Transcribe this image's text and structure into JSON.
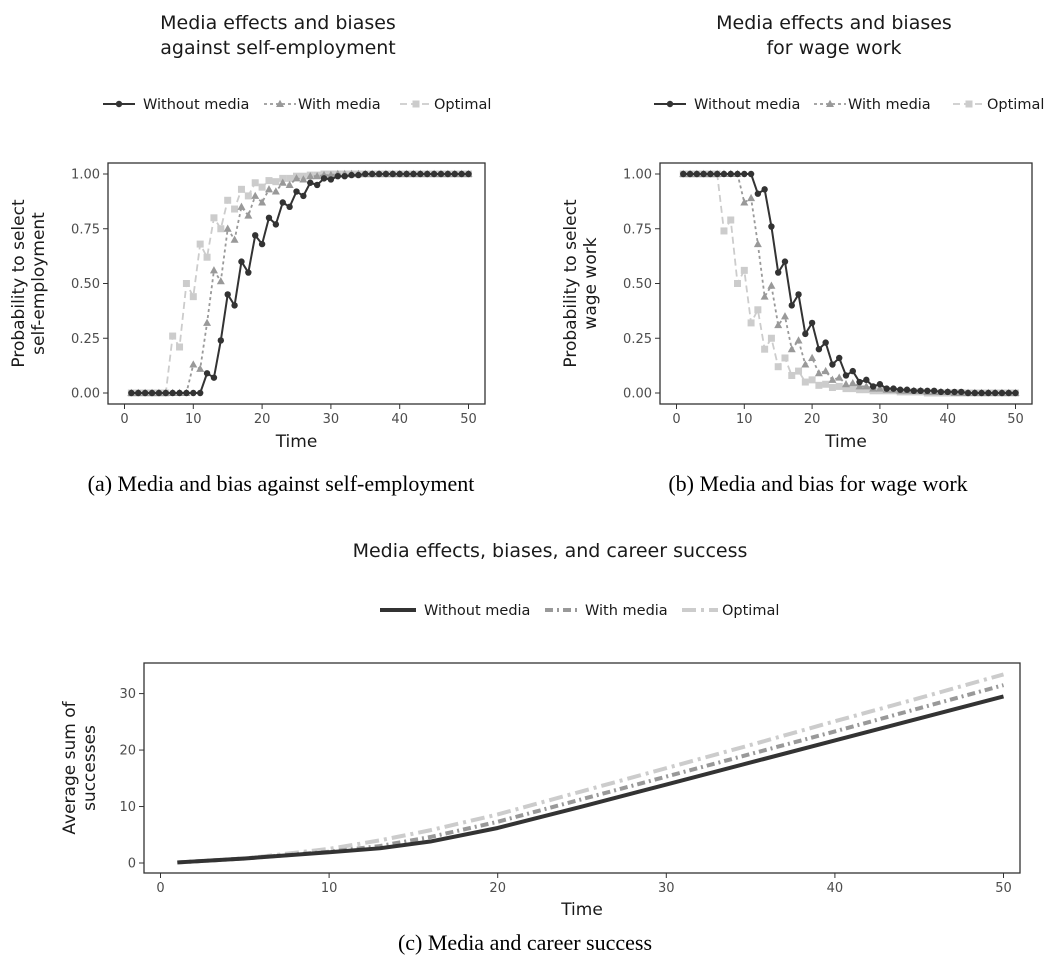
{
  "colors": {
    "without": "#333333",
    "with": "#999999",
    "optimal": "#cccccc"
  },
  "chart_data": [
    {
      "type": "line",
      "title_lines": [
        "Media effects and biases",
        "against self-employment"
      ],
      "legend": [
        "Without media",
        "With media",
        "Optimal"
      ],
      "xlabel": "Time",
      "ylabel_lines": [
        "Probability to select",
        "self-employment"
      ],
      "xlim": [
        0,
        50
      ],
      "ylim": [
        0,
        1
      ],
      "xticks": [
        0,
        10,
        20,
        30,
        40,
        50
      ],
      "yticks": [
        0,
        0.25,
        0.5,
        0.75,
        1
      ],
      "ytick_labels": [
        "0.00",
        "0.25",
        "0.50",
        "0.75",
        "1.00"
      ],
      "caption": "(a) Media and bias against self-employment",
      "series": [
        {
          "name": "Without media",
          "marker": "circle",
          "x": [
            1,
            2,
            3,
            4,
            5,
            6,
            7,
            8,
            9,
            10,
            11,
            12,
            13,
            14,
            15,
            16,
            17,
            18,
            19,
            20,
            21,
            22,
            23,
            24,
            25,
            26,
            27,
            28,
            29,
            30,
            31,
            32,
            33,
            34,
            35,
            36,
            37,
            38,
            39,
            40,
            41,
            42,
            43,
            44,
            45,
            46,
            47,
            48,
            49,
            50
          ],
          "y": [
            0,
            0,
            0,
            0,
            0,
            0,
            0,
            0,
            0,
            0,
            0,
            0.09,
            0.07,
            0.24,
            0.45,
            0.4,
            0.6,
            0.55,
            0.72,
            0.68,
            0.8,
            0.77,
            0.87,
            0.85,
            0.92,
            0.9,
            0.96,
            0.95,
            0.98,
            0.975,
            0.99,
            0.99,
            0.995,
            0.995,
            1,
            1,
            1,
            1,
            1,
            1,
            1,
            1,
            1,
            1,
            1,
            1,
            1,
            1,
            1,
            1
          ]
        },
        {
          "name": "With media",
          "marker": "triangle",
          "x": [
            1,
            2,
            3,
            4,
            5,
            6,
            7,
            8,
            9,
            10,
            11,
            12,
            13,
            14,
            15,
            16,
            17,
            18,
            19,
            20,
            21,
            22,
            23,
            24,
            25,
            26,
            27,
            28,
            29,
            30,
            31,
            32,
            33,
            34,
            35,
            36,
            37,
            38,
            39,
            40,
            41,
            42,
            43,
            44,
            45,
            46,
            47,
            48,
            49,
            50
          ],
          "y": [
            0,
            0,
            0,
            0,
            0,
            0,
            0,
            0,
            0,
            0.13,
            0.11,
            0.32,
            0.56,
            0.51,
            0.75,
            0.7,
            0.85,
            0.81,
            0.9,
            0.87,
            0.93,
            0.92,
            0.96,
            0.95,
            0.98,
            0.975,
            0.99,
            0.99,
            0.995,
            0.995,
            1,
            1,
            1,
            1,
            1,
            1,
            1,
            1,
            1,
            1,
            1,
            1,
            1,
            1,
            1,
            1,
            1,
            1,
            1,
            1
          ]
        },
        {
          "name": "Optimal",
          "marker": "square",
          "x": [
            1,
            2,
            3,
            4,
            5,
            6,
            7,
            8,
            9,
            10,
            11,
            12,
            13,
            14,
            15,
            16,
            17,
            18,
            19,
            20,
            21,
            22,
            23,
            24,
            25,
            26,
            27,
            28,
            29,
            30,
            31,
            32,
            33,
            34,
            35,
            36,
            37,
            38,
            39,
            40,
            41,
            42,
            43,
            44,
            45,
            46,
            47,
            48,
            49,
            50
          ],
          "y": [
            0,
            0,
            0,
            0,
            0,
            0,
            0.26,
            0.21,
            0.5,
            0.44,
            0.68,
            0.62,
            0.8,
            0.75,
            0.88,
            0.84,
            0.93,
            0.9,
            0.96,
            0.94,
            0.97,
            0.965,
            0.98,
            0.98,
            0.99,
            0.99,
            0.995,
            0.995,
            1,
            1,
            1,
            1,
            1,
            1,
            1,
            1,
            1,
            1,
            1,
            1,
            1,
            1,
            1,
            1,
            1,
            1,
            1,
            1,
            1,
            1
          ]
        }
      ]
    },
    {
      "type": "line",
      "title_lines": [
        "Media effects and biases",
        "for wage work"
      ],
      "legend": [
        "Without media",
        "With media",
        "Optimal"
      ],
      "xlabel": "Time",
      "ylabel_lines": [
        "Probability to select",
        "wage work"
      ],
      "xlim": [
        0,
        50
      ],
      "ylim": [
        0,
        1
      ],
      "xticks": [
        0,
        10,
        20,
        30,
        40,
        50
      ],
      "yticks": [
        0,
        0.25,
        0.5,
        0.75,
        1
      ],
      "ytick_labels": [
        "0.00",
        "0.25",
        "0.50",
        "0.75",
        "1.00"
      ],
      "caption": "(b) Media and bias for wage work",
      "series": [
        {
          "name": "Without media",
          "marker": "circle",
          "x": [
            1,
            2,
            3,
            4,
            5,
            6,
            7,
            8,
            9,
            10,
            11,
            12,
            13,
            14,
            15,
            16,
            17,
            18,
            19,
            20,
            21,
            22,
            23,
            24,
            25,
            26,
            27,
            28,
            29,
            30,
            31,
            32,
            33,
            34,
            35,
            36,
            37,
            38,
            39,
            40,
            41,
            42,
            43,
            44,
            45,
            46,
            47,
            48,
            49,
            50
          ],
          "y": [
            1,
            1,
            1,
            1,
            1,
            1,
            1,
            1,
            1,
            1,
            1,
            0.91,
            0.93,
            0.76,
            0.55,
            0.6,
            0.4,
            0.45,
            0.27,
            0.32,
            0.2,
            0.23,
            0.13,
            0.16,
            0.08,
            0.1,
            0.05,
            0.06,
            0.03,
            0.04,
            0.02,
            0.02,
            0.015,
            0.015,
            0.01,
            0.01,
            0.01,
            0.01,
            0.005,
            0.005,
            0.005,
            0.005,
            0,
            0,
            0,
            0,
            0,
            0,
            0,
            0
          ]
        },
        {
          "name": "With media",
          "marker": "triangle",
          "x": [
            1,
            2,
            3,
            4,
            5,
            6,
            7,
            8,
            9,
            10,
            11,
            12,
            13,
            14,
            15,
            16,
            17,
            18,
            19,
            20,
            21,
            22,
            23,
            24,
            25,
            26,
            27,
            28,
            29,
            30,
            31,
            32,
            33,
            34,
            35,
            36,
            37,
            38,
            39,
            40,
            41,
            42,
            43,
            44,
            45,
            46,
            47,
            48,
            49,
            50
          ],
          "y": [
            1,
            1,
            1,
            1,
            1,
            1,
            1,
            1,
            1,
            0.87,
            0.89,
            0.68,
            0.44,
            0.49,
            0.31,
            0.35,
            0.2,
            0.24,
            0.13,
            0.16,
            0.09,
            0.1,
            0.06,
            0.07,
            0.04,
            0.045,
            0.03,
            0.03,
            0.02,
            0.02,
            0.015,
            0.015,
            0.01,
            0.01,
            0.01,
            0.01,
            0.005,
            0.005,
            0.005,
            0.005,
            0,
            0,
            0,
            0,
            0,
            0,
            0,
            0,
            0,
            0
          ]
        },
        {
          "name": "Optimal",
          "marker": "square",
          "x": [
            1,
            2,
            3,
            4,
            5,
            6,
            7,
            8,
            9,
            10,
            11,
            12,
            13,
            14,
            15,
            16,
            17,
            18,
            19,
            20,
            21,
            22,
            23,
            24,
            25,
            26,
            27,
            28,
            29,
            30,
            31,
            32,
            33,
            34,
            35,
            36,
            37,
            38,
            39,
            40,
            41,
            42,
            43,
            44,
            45,
            46,
            47,
            48,
            49,
            50
          ],
          "y": [
            1,
            1,
            1,
            1,
            1,
            1,
            0.74,
            0.79,
            0.5,
            0.56,
            0.32,
            0.38,
            0.2,
            0.25,
            0.12,
            0.16,
            0.08,
            0.1,
            0.05,
            0.06,
            0.035,
            0.04,
            0.025,
            0.03,
            0.02,
            0.02,
            0.015,
            0.015,
            0.01,
            0.01,
            0.01,
            0.01,
            0.005,
            0.005,
            0.005,
            0.005,
            0,
            0,
            0,
            0,
            0,
            0,
            0,
            0,
            0,
            0,
            0,
            0,
            0,
            0
          ]
        }
      ]
    },
    {
      "type": "line",
      "title_lines": [
        "Media effects, biases, and career success"
      ],
      "legend": [
        "Without media",
        "With media",
        "Optimal"
      ],
      "xlabel": "Time",
      "ylabel_lines": [
        "Average sum of",
        "successes"
      ],
      "xlim": [
        0,
        50
      ],
      "ylim": [
        0,
        34
      ],
      "xticks": [
        0,
        10,
        20,
        30,
        40,
        50
      ],
      "yticks": [
        0,
        10,
        20,
        30
      ],
      "ytick_labels": [
        "0",
        "10",
        "20",
        "30"
      ],
      "caption": "(c) Media and career success",
      "series": [
        {
          "name": "Without media",
          "x": [
            1,
            5,
            10,
            13,
            16,
            20,
            25,
            30,
            35,
            40,
            45,
            50
          ],
          "y": [
            0.1,
            0.8,
            1.9,
            2.6,
            3.8,
            6.2,
            10.0,
            13.9,
            17.8,
            21.7,
            25.6,
            29.5
          ]
        },
        {
          "name": "With media",
          "x": [
            1,
            5,
            10,
            13,
            16,
            20,
            25,
            30,
            35,
            40,
            45,
            50
          ],
          "y": [
            0.1,
            0.8,
            2.0,
            3.0,
            4.6,
            7.3,
            11.3,
            15.3,
            19.3,
            23.3,
            27.4,
            31.5
          ]
        },
        {
          "name": "Optimal",
          "x": [
            1,
            5,
            10,
            13,
            16,
            20,
            25,
            30,
            35,
            40,
            45,
            50
          ],
          "y": [
            0.1,
            0.8,
            2.5,
            4.0,
            5.8,
            8.6,
            12.7,
            16.8,
            20.9,
            25.1,
            29.2,
            33.4
          ]
        }
      ]
    }
  ]
}
